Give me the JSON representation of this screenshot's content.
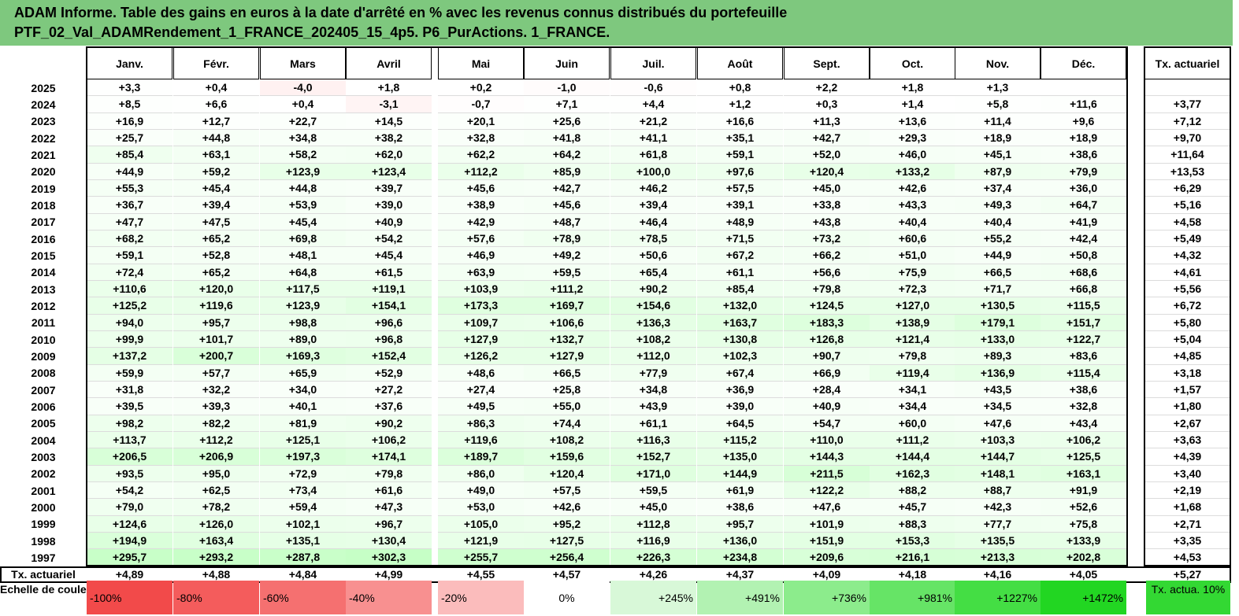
{
  "report": {
    "title_line1": "ADAM Informe. Table des gains en euros à la date d'arrêté en % avec les revenus connus distribués du portefeuille",
    "title_line2": "PTF_02_Val_ADAMRendement_1_FRANCE_202405_15_4p5. P6_PurActions. 1_FRANCE."
  },
  "table": {
    "months": [
      "Janv.",
      "Févr.",
      "Mars",
      "Avril",
      "Mai",
      "Juin",
      "Juil.",
      "Août",
      "Sept.",
      "Oct.",
      "Nov.",
      "Déc."
    ],
    "rate_header": "Tx. actuariel",
    "rows": [
      {
        "year": "2025",
        "values": [
          "+3,3",
          "+0,4",
          "-4,0",
          "+1,8",
          "+0,2",
          "-1,0",
          "-0,6",
          "+0,8",
          "+2,2",
          "+1,8",
          "+1,3",
          ""
        ],
        "rate": ""
      },
      {
        "year": "2024",
        "values": [
          "+8,5",
          "+6,6",
          "+0,4",
          "-3,1",
          "-0,7",
          "+7,1",
          "+4,4",
          "+1,2",
          "+0,3",
          "+1,4",
          "+5,8",
          "+11,6"
        ],
        "rate": "+3,77"
      },
      {
        "year": "2023",
        "values": [
          "+16,9",
          "+12,7",
          "+22,7",
          "+14,5",
          "+20,1",
          "+25,6",
          "+21,2",
          "+16,6",
          "+11,3",
          "+13,6",
          "+11,4",
          "+9,6"
        ],
        "rate": "+7,12"
      },
      {
        "year": "2022",
        "values": [
          "+25,7",
          "+44,8",
          "+34,8",
          "+38,2",
          "+32,8",
          "+41,8",
          "+41,1",
          "+35,1",
          "+42,7",
          "+29,3",
          "+18,9",
          "+18,9"
        ],
        "rate": "+9,70"
      },
      {
        "year": "2021",
        "values": [
          "+85,4",
          "+63,1",
          "+58,2",
          "+62,0",
          "+62,2",
          "+64,2",
          "+61,8",
          "+59,1",
          "+52,0",
          "+46,0",
          "+45,1",
          "+38,6"
        ],
        "rate": "+11,64"
      },
      {
        "year": "2020",
        "values": [
          "+44,9",
          "+59,2",
          "+123,9",
          "+123,4",
          "+112,2",
          "+85,9",
          "+100,0",
          "+97,6",
          "+120,4",
          "+133,2",
          "+87,9",
          "+79,9"
        ],
        "rate": "+13,53"
      },
      {
        "year": "2019",
        "values": [
          "+55,3",
          "+45,4",
          "+44,8",
          "+39,7",
          "+45,6",
          "+42,7",
          "+46,2",
          "+57,5",
          "+45,0",
          "+42,6",
          "+37,4",
          "+36,0"
        ],
        "rate": "+6,29"
      },
      {
        "year": "2018",
        "values": [
          "+36,7",
          "+39,4",
          "+53,9",
          "+39,0",
          "+38,9",
          "+45,6",
          "+39,4",
          "+39,1",
          "+33,8",
          "+43,3",
          "+49,3",
          "+64,7"
        ],
        "rate": "+5,16"
      },
      {
        "year": "2017",
        "values": [
          "+47,7",
          "+47,5",
          "+45,4",
          "+40,9",
          "+42,9",
          "+48,7",
          "+46,4",
          "+48,9",
          "+43,8",
          "+40,4",
          "+40,4",
          "+41,9"
        ],
        "rate": "+4,58"
      },
      {
        "year": "2016",
        "values": [
          "+68,2",
          "+65,2",
          "+69,8",
          "+54,2",
          "+57,6",
          "+78,9",
          "+78,5",
          "+71,5",
          "+73,2",
          "+60,6",
          "+55,2",
          "+42,4"
        ],
        "rate": "+5,49"
      },
      {
        "year": "2015",
        "values": [
          "+59,1",
          "+52,8",
          "+48,1",
          "+45,4",
          "+46,9",
          "+49,2",
          "+50,6",
          "+67,2",
          "+66,2",
          "+51,0",
          "+44,9",
          "+50,8"
        ],
        "rate": "+4,32"
      },
      {
        "year": "2014",
        "values": [
          "+72,4",
          "+65,2",
          "+64,8",
          "+61,5",
          "+63,9",
          "+59,5",
          "+65,4",
          "+61,1",
          "+56,6",
          "+75,9",
          "+66,5",
          "+68,6"
        ],
        "rate": "+4,61"
      },
      {
        "year": "2013",
        "values": [
          "+110,6",
          "+120,0",
          "+117,5",
          "+119,1",
          "+103,9",
          "+111,2",
          "+90,2",
          "+85,4",
          "+79,8",
          "+72,3",
          "+71,7",
          "+66,8"
        ],
        "rate": "+5,56"
      },
      {
        "year": "2012",
        "values": [
          "+125,2",
          "+119,6",
          "+123,9",
          "+154,1",
          "+173,3",
          "+169,7",
          "+154,6",
          "+132,0",
          "+124,5",
          "+127,0",
          "+130,5",
          "+115,5"
        ],
        "rate": "+6,72"
      },
      {
        "year": "2011",
        "values": [
          "+94,0",
          "+95,7",
          "+98,8",
          "+96,6",
          "+109,7",
          "+106,6",
          "+136,3",
          "+163,7",
          "+183,3",
          "+138,9",
          "+179,1",
          "+151,7"
        ],
        "rate": "+5,80"
      },
      {
        "year": "2010",
        "values": [
          "+99,9",
          "+101,7",
          "+89,0",
          "+96,8",
          "+127,9",
          "+132,7",
          "+108,2",
          "+130,8",
          "+126,8",
          "+121,4",
          "+133,0",
          "+122,7"
        ],
        "rate": "+5,04"
      },
      {
        "year": "2009",
        "values": [
          "+137,2",
          "+200,7",
          "+169,3",
          "+152,4",
          "+126,2",
          "+127,9",
          "+112,0",
          "+102,3",
          "+90,7",
          "+79,8",
          "+89,3",
          "+83,6"
        ],
        "rate": "+4,85"
      },
      {
        "year": "2008",
        "values": [
          "+59,9",
          "+57,7",
          "+65,9",
          "+52,9",
          "+48,6",
          "+66,5",
          "+77,9",
          "+67,4",
          "+66,9",
          "+119,4",
          "+136,9",
          "+115,4"
        ],
        "rate": "+3,18"
      },
      {
        "year": "2007",
        "values": [
          "+31,8",
          "+32,2",
          "+34,0",
          "+27,2",
          "+27,4",
          "+25,8",
          "+34,8",
          "+36,9",
          "+28,4",
          "+34,1",
          "+43,5",
          "+38,6"
        ],
        "rate": "+1,57"
      },
      {
        "year": "2006",
        "values": [
          "+39,5",
          "+39,3",
          "+40,1",
          "+37,6",
          "+49,5",
          "+55,0",
          "+43,9",
          "+39,0",
          "+40,9",
          "+34,4",
          "+34,5",
          "+32,8"
        ],
        "rate": "+1,80"
      },
      {
        "year": "2005",
        "values": [
          "+98,2",
          "+82,2",
          "+81,9",
          "+90,2",
          "+86,3",
          "+74,4",
          "+61,1",
          "+64,5",
          "+54,7",
          "+60,0",
          "+47,6",
          "+43,4"
        ],
        "rate": "+2,67"
      },
      {
        "year": "2004",
        "values": [
          "+113,7",
          "+112,2",
          "+125,1",
          "+106,2",
          "+119,6",
          "+108,2",
          "+116,3",
          "+115,2",
          "+110,0",
          "+111,2",
          "+103,3",
          "+106,2"
        ],
        "rate": "+3,63"
      },
      {
        "year": "2003",
        "values": [
          "+206,5",
          "+206,9",
          "+197,3",
          "+174,1",
          "+189,7",
          "+159,6",
          "+152,7",
          "+135,0",
          "+144,3",
          "+144,4",
          "+144,7",
          "+125,5"
        ],
        "rate": "+4,39"
      },
      {
        "year": "2002",
        "values": [
          "+93,5",
          "+95,0",
          "+72,9",
          "+79,8",
          "+86,0",
          "+120,4",
          "+171,0",
          "+144,9",
          "+211,5",
          "+162,3",
          "+148,1",
          "+163,1"
        ],
        "rate": "+3,40"
      },
      {
        "year": "2001",
        "values": [
          "+54,2",
          "+62,5",
          "+73,4",
          "+61,6",
          "+49,0",
          "+57,5",
          "+59,5",
          "+61,9",
          "+122,2",
          "+88,2",
          "+88,7",
          "+91,9"
        ],
        "rate": "+2,19"
      },
      {
        "year": "2000",
        "values": [
          "+79,0",
          "+78,2",
          "+59,4",
          "+47,3",
          "+53,0",
          "+42,6",
          "+45,0",
          "+38,6",
          "+47,6",
          "+45,7",
          "+42,3",
          "+52,6"
        ],
        "rate": "+1,68"
      },
      {
        "year": "1999",
        "values": [
          "+124,6",
          "+126,0",
          "+102,1",
          "+96,7",
          "+105,0",
          "+95,2",
          "+112,8",
          "+95,7",
          "+101,9",
          "+88,3",
          "+77,7",
          "+75,8"
        ],
        "rate": "+2,71"
      },
      {
        "year": "1998",
        "values": [
          "+194,9",
          "+163,4",
          "+135,1",
          "+130,4",
          "+121,9",
          "+127,5",
          "+116,9",
          "+136,0",
          "+151,9",
          "+153,3",
          "+135,5",
          "+133,9"
        ],
        "rate": "+3,35"
      },
      {
        "year": "1997",
        "values": [
          "+295,7",
          "+293,2",
          "+287,8",
          "+302,3",
          "+255,7",
          "+256,4",
          "+226,3",
          "+234,8",
          "+209,6",
          "+216,1",
          "+213,3",
          "+202,8"
        ],
        "rate": "+4,53"
      }
    ],
    "summary": {
      "label": "Tx. actuariel",
      "values": [
        "+4,89",
        "+4,88",
        "+4,84",
        "+4,99",
        "+4,55",
        "+4,57",
        "+4,26",
        "+4,37",
        "+4,09",
        "+4,18",
        "+4,16",
        "+4,05"
      ],
      "rate": "+5,27"
    }
  },
  "scale": {
    "label": "Echelle de couleur",
    "steps": [
      {
        "text": "-100%",
        "color": "#f24a4a"
      },
      {
        "text": "-80%",
        "color": "#f45c5c"
      },
      {
        "text": "-60%",
        "color": "#f57070"
      },
      {
        "text": "-40%",
        "color": "#f89090"
      },
      {
        "text": "-20%",
        "color": "#fbbcbc"
      },
      {
        "text": "0%",
        "color": "#ffffff"
      },
      {
        "text": "+245%",
        "color": "#d8f8d8"
      },
      {
        "text": "+491%",
        "color": "#b2f2b2"
      },
      {
        "text": "+736%",
        "color": "#8cec8c"
      },
      {
        "text": "+981%",
        "color": "#66e466"
      },
      {
        "text": "+1227%",
        "color": "#44de44"
      },
      {
        "text": "+1472%",
        "color": "#22d622"
      }
    ],
    "rate_text": "Tx. actua. 10%",
    "rate_color": "#33d833"
  }
}
